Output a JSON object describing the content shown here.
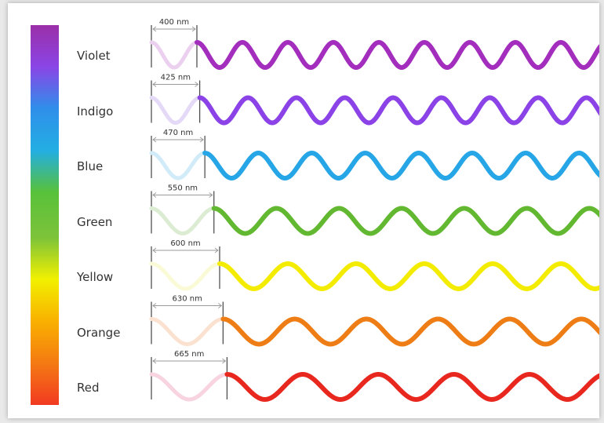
{
  "spectrum": {
    "gradient_colors": [
      "#9b2fa8",
      "#8a45e6",
      "#2f8fea",
      "#23aee3",
      "#58c13a",
      "#7dc33a",
      "#f2f000",
      "#f9b000",
      "#f47a12",
      "#f23a22"
    ]
  },
  "bands": [
    {
      "name": "Violet",
      "wavelength_label": "400 nm",
      "wavelength_nm": 400,
      "color": "#a32dbd",
      "ghost_color": "#ebd0f0"
    },
    {
      "name": "Indigo",
      "wavelength_label": "425 nm",
      "wavelength_nm": 425,
      "color": "#8b43e8",
      "ghost_color": "#e4d9f7"
    },
    {
      "name": "Blue",
      "wavelength_label": "470 nm",
      "wavelength_nm": 470,
      "color": "#26a6e6",
      "ghost_color": "#d1ebf8"
    },
    {
      "name": "Green",
      "wavelength_label": "550 nm",
      "wavelength_nm": 550,
      "color": "#62b830",
      "ghost_color": "#dcecd3"
    },
    {
      "name": "Yellow",
      "wavelength_label": "600 nm",
      "wavelength_nm": 600,
      "color": "#f4ec00",
      "ghost_color": "#fafbd6"
    },
    {
      "name": "Orange",
      "wavelength_label": "630 nm",
      "wavelength_nm": 630,
      "color": "#ef7d15",
      "ghost_color": "#fbe2d0"
    },
    {
      "name": "Red",
      "wavelength_label": "665 nm",
      "wavelength_nm": 665,
      "color": "#e8281e",
      "ghost_color": "#f8d3e0"
    }
  ]
}
